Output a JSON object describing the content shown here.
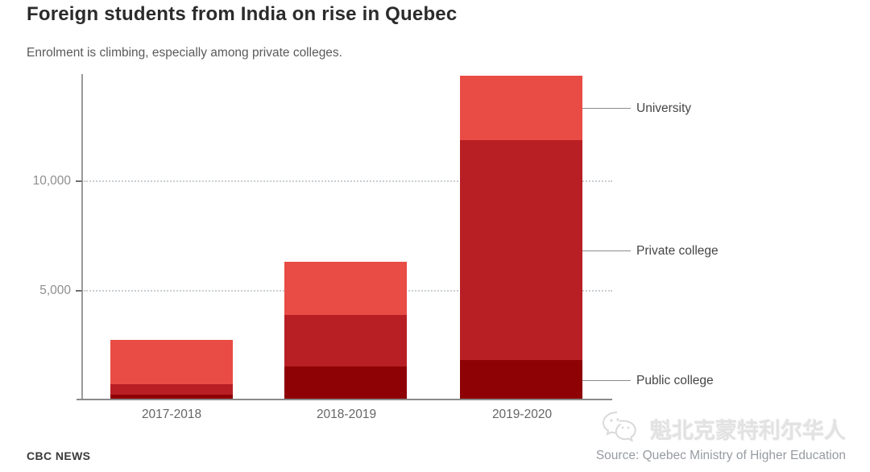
{
  "header": {
    "title": "Foreign students from India on rise in Quebec",
    "subtitle": "Enrolment is climbing, especially among private colleges."
  },
  "chart_data": {
    "type": "bar",
    "stacked": true,
    "title": "Foreign students from India on rise in Quebec",
    "subtitle": "Enrolment is climbing, especially among private colleges.",
    "categories": [
      "2017-2018",
      "2018-2019",
      "2019-2020"
    ],
    "series": [
      {
        "name": "Public college",
        "color": "#8e0205",
        "values": [
          200,
          1480,
          1760
        ]
      },
      {
        "name": "Private college",
        "color": "#b81f24",
        "values": [
          450,
          2370,
          10100
        ]
      },
      {
        "name": "University",
        "color": "#e84c44",
        "values": [
          2060,
          2410,
          2950
        ]
      }
    ],
    "stack_order": "bottom-to-top",
    "totals": [
      2710,
      6260,
      14810
    ],
    "xlabel": "",
    "ylabel": "",
    "yticks": [
      5000,
      10000
    ],
    "ytick_labels": [
      "5,000",
      "10,000"
    ],
    "ylim": [
      0,
      14950
    ],
    "grid": "horizontal-dotted",
    "legend_position": "right-annotations"
  },
  "footer": {
    "brand": "CBC NEWS",
    "source": "Source: Quebec Ministry of Higher Education"
  },
  "watermark": {
    "icon": "wechat-icon",
    "text": "魁北克蒙特利尔华人"
  }
}
